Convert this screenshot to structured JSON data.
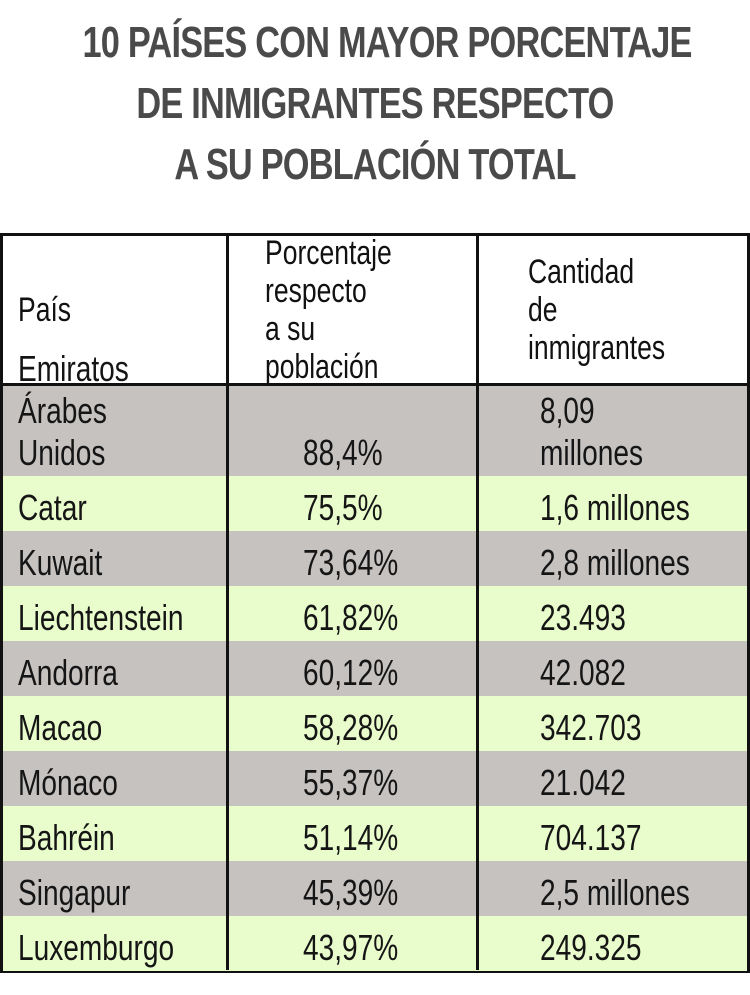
{
  "title_lines": [
    "10 PAÍSES CON MAYOR PORCENTAJE",
    "DE INMIGRANTES RESPECTO",
    "A SU POBLACIÓN TOTAL"
  ],
  "colors": {
    "row_gray": "#c5c2c0",
    "row_green": "#e8fccc",
    "border": "#111111",
    "title": "#4a4a4a"
  },
  "chart_data": {
    "type": "table",
    "columns": [
      "País",
      "Porcentaje\nrespecto\na su población",
      "Cantidad\nde inmigrantes"
    ],
    "rows": [
      [
        "Emiratos\nÁrabes Unidos",
        "88,4%",
        "8,09 millones"
      ],
      [
        "Catar",
        "75,5%",
        "1,6 millones"
      ],
      [
        "Kuwait",
        "73,64%",
        "2,8 millones"
      ],
      [
        "Liechtenstein",
        "61,82%",
        "23.493"
      ],
      [
        "Andorra",
        "60,12%",
        "42.082"
      ],
      [
        "Macao",
        "58,28%",
        "342.703"
      ],
      [
        "Mónaco",
        "55,37%",
        "21.042"
      ],
      [
        "Bahréin",
        "51,14%",
        "704.137"
      ],
      [
        "Singapur",
        "45,39%",
        "2,5 millones"
      ],
      [
        "Luxemburgo",
        "43,97%",
        "249.325"
      ]
    ]
  }
}
